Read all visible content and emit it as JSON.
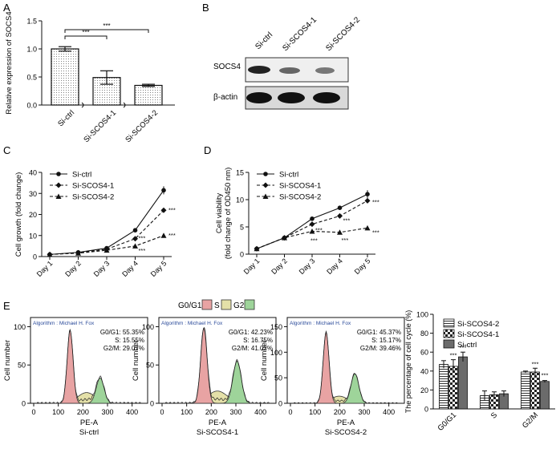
{
  "panels": {
    "A": {
      "label": "A"
    },
    "B": {
      "label": "B",
      "bands": [
        "SOCS4",
        "β-actin"
      ],
      "lanes": [
        "Si-ctrl",
        "Si-SCOS4-1",
        "Si-SCOS4-2"
      ]
    },
    "C": {
      "label": "C"
    },
    "D": {
      "label": "D"
    },
    "E": {
      "label": "E"
    }
  },
  "chart_data": [
    {
      "id": "A",
      "type": "bar",
      "categories": [
        "Si-ctrl",
        "Si-SCOS4-1",
        "Si-SCOS4-2"
      ],
      "values": [
        1.0,
        0.49,
        0.35
      ],
      "errors": [
        0.04,
        0.12,
        0.02
      ],
      "ylabel": "Relative expression of SOCS4",
      "ylim": [
        0,
        1.5
      ],
      "yticks": [
        "0.0",
        "0.5",
        "1.0",
        "1.5"
      ],
      "significance": [
        "***",
        "***"
      ]
    },
    {
      "id": "C",
      "type": "line",
      "x": [
        "Day 1",
        "Day 2",
        "Day 3",
        "Day 4",
        "Day 5"
      ],
      "ylabel": "Cell growth (fold change)",
      "ylim": [
        0,
        40
      ],
      "yticks": [
        "0",
        "10",
        "20",
        "30",
        "40"
      ],
      "legend": "top-left",
      "series": [
        {
          "name": "Si-ctrl",
          "values": [
            1.0,
            2.0,
            4.0,
            12.5,
            31.5
          ],
          "marker": "circle",
          "dash": "solid"
        },
        {
          "name": "Si-SCOS4-1",
          "values": [
            1.0,
            1.8,
            3.5,
            8.5,
            22.0
          ],
          "marker": "diamond",
          "dash": "dashed"
        },
        {
          "name": "Si-SCOS4-2",
          "values": [
            1.0,
            1.6,
            3.0,
            5.0,
            10.0
          ],
          "marker": "triangle",
          "dash": "dashed"
        }
      ],
      "annotations": [
        "***",
        "***",
        "***",
        "***"
      ]
    },
    {
      "id": "D",
      "type": "line",
      "x": [
        "Day 1",
        "Day 2",
        "Day 3",
        "Day 4",
        "Day 5"
      ],
      "ylabel": "Cell viability (fold change of OD450 nm)",
      "ylabel_lines": [
        "Cell viability",
        "(fold change of OD450 nm)"
      ],
      "ylim": [
        0,
        15
      ],
      "yticks": [
        "0",
        "5",
        "10",
        "15"
      ],
      "legend": "top-left",
      "series": [
        {
          "name": "Si-ctrl",
          "values": [
            1.0,
            3.0,
            6.5,
            8.5,
            11.0
          ],
          "marker": "circle",
          "dash": "solid"
        },
        {
          "name": "Si-SCOS4-1",
          "values": [
            1.0,
            3.0,
            5.5,
            7.0,
            9.8
          ],
          "marker": "diamond",
          "dash": "dashed"
        },
        {
          "name": "Si-SCOS4-2",
          "values": [
            1.0,
            3.0,
            4.2,
            4.0,
            4.8
          ],
          "marker": "triangle",
          "dash": "dashed"
        }
      ],
      "annotations": [
        "***",
        "***",
        "***",
        "***",
        "***",
        "***"
      ]
    },
    {
      "id": "E-bar",
      "type": "bar",
      "categories": [
        "G0/G1",
        "S",
        "G2/M"
      ],
      "ylabel": "The percentage of cell cycle (%)",
      "ylim": [
        0,
        100
      ],
      "yticks": [
        "0",
        "20",
        "40",
        "60",
        "80",
        "100"
      ],
      "legend": "top-right",
      "series": [
        {
          "name": "Si-SCOS4-2",
          "values": [
            47,
            14,
            39
          ],
          "errors": [
            4,
            5,
            1
          ]
        },
        {
          "name": "Si-SCOS4-1",
          "values": [
            45,
            15,
            39
          ],
          "errors": [
            7,
            3,
            4
          ]
        },
        {
          "name": "Si-ctrl",
          "values": [
            55,
            16,
            29
          ],
          "errors": [
            5,
            3,
            1
          ]
        }
      ],
      "annotations": [
        "***",
        "***",
        "***",
        "***"
      ]
    }
  ],
  "flow": {
    "legend_title": "G0/G1",
    "legend": [
      {
        "label": "S",
        "color": "#e8a3a3"
      },
      {
        "label": "G2",
        "color": "#e4e0a8"
      },
      {
        "label": "",
        "color": "#9ed49a"
      }
    ],
    "algorithm": "Algorithm : Michael H. Fox",
    "xlabel": "PE-A",
    "ylabel": "Cell number",
    "xticks": [
      "0",
      "100",
      "200",
      "300",
      "400"
    ],
    "plots": [
      {
        "name": "Si-ctrl",
        "yticks": [
          "0",
          "50",
          "100"
        ],
        "g0g1": "G0/G1: 55.35%",
        "s": "S: 15.55%",
        "g2m": "G2/M: 29.07%"
      },
      {
        "name": "Si-SCOS4-1",
        "yticks": [
          "0",
          "50",
          "100"
        ],
        "g0g1": "G0/G1: 42.23%",
        "s": "S: 16.75%",
        "g2m": "G2/M: 41.02%"
      },
      {
        "name": "Si-SCOS4-2",
        "yticks": [
          "0",
          "50",
          "100",
          "150"
        ],
        "g0g1": "G0/G1: 45.37%",
        "s": "S: 15.17%",
        "g2m": "G2/M: 39.46%"
      }
    ]
  }
}
